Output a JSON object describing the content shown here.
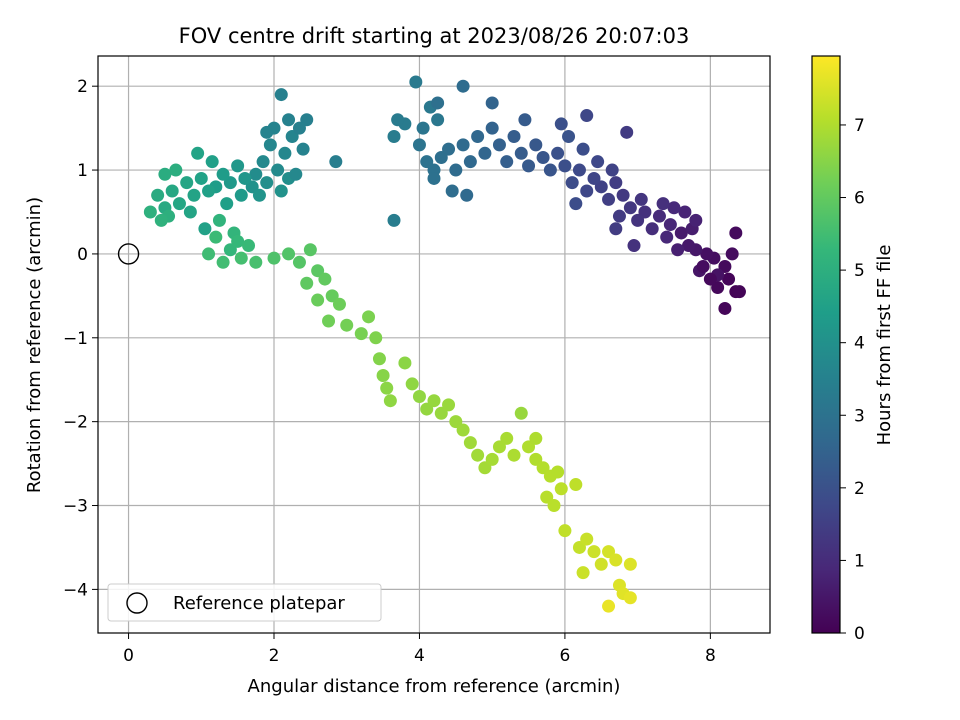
{
  "chart_data": {
    "type": "scatter",
    "title": "FOV centre drift starting at 2023/08/26 20:07:03",
    "xlabel": "Angular distance from reference (arcmin)",
    "ylabel": "Rotation from reference (arcmin)",
    "xlim": [
      -0.42,
      8.82
    ],
    "ylim": [
      -4.52,
      2.36
    ],
    "xticks": [
      0,
      2,
      4,
      6,
      8
    ],
    "yticks": [
      -4,
      -3,
      -2,
      -1,
      0,
      1,
      2
    ],
    "grid": true,
    "legend": {
      "placement": "lower-left",
      "entries": [
        "Reference platepar"
      ]
    },
    "reference_point": {
      "x": 0,
      "y": 0,
      "label": "Reference platepar"
    },
    "colorbar": {
      "label": "Hours from first FF file",
      "colormap": "viridis",
      "range": [
        0,
        7.95
      ],
      "ticks": [
        0,
        1,
        2,
        3,
        4,
        5,
        6,
        7
      ]
    },
    "colormap_stops": [
      "#440154",
      "#482878",
      "#3e4989",
      "#31688e",
      "#26828e",
      "#1f9e89",
      "#35b779",
      "#6ece58",
      "#b5de2b",
      "#fde725"
    ],
    "points": [
      [
        8.35,
        -0.45,
        0.05
      ],
      [
        8.25,
        -0.3,
        0.1
      ],
      [
        8.1,
        -0.4,
        0.15
      ],
      [
        8.2,
        -0.15,
        0.2
      ],
      [
        8.3,
        0.0,
        0.25
      ],
      [
        8.2,
        -0.65,
        0.12
      ],
      [
        8.4,
        -0.45,
        0.08
      ],
      [
        8.05,
        -0.05,
        0.3
      ],
      [
        7.95,
        0.0,
        0.35
      ],
      [
        8.1,
        -0.25,
        0.4
      ],
      [
        7.85,
        -0.2,
        0.45
      ],
      [
        7.8,
        0.05,
        0.5
      ],
      [
        8.0,
        -0.3,
        0.18
      ],
      [
        8.35,
        0.25,
        0.22
      ],
      [
        7.7,
        0.1,
        0.55
      ],
      [
        7.6,
        0.25,
        0.6
      ],
      [
        7.75,
        0.3,
        0.65
      ],
      [
        7.55,
        0.05,
        0.7
      ],
      [
        7.8,
        0.4,
        0.75
      ],
      [
        7.65,
        0.5,
        0.8
      ],
      [
        7.9,
        -0.15,
        0.28
      ],
      [
        7.45,
        0.35,
        0.85
      ],
      [
        7.4,
        0.2,
        0.9
      ],
      [
        7.5,
        0.55,
        0.95
      ],
      [
        7.3,
        0.45,
        1.0
      ],
      [
        7.2,
        0.3,
        1.05
      ],
      [
        7.35,
        0.6,
        1.1
      ],
      [
        7.1,
        0.5,
        1.15
      ],
      [
        7.0,
        0.4,
        1.2
      ],
      [
        7.05,
        0.65,
        1.25
      ],
      [
        6.9,
        0.55,
        1.3
      ],
      [
        6.8,
        0.7,
        1.35
      ],
      [
        6.95,
        0.1,
        1.15
      ],
      [
        6.75,
        0.45,
        1.4
      ],
      [
        6.7,
        0.85,
        1.45
      ],
      [
        6.6,
        0.65,
        1.5
      ],
      [
        6.5,
        0.8,
        1.55
      ],
      [
        6.65,
        1.0,
        1.6
      ],
      [
        6.4,
        0.9,
        1.65
      ],
      [
        6.3,
        0.75,
        1.7
      ],
      [
        6.45,
        1.1,
        1.75
      ],
      [
        6.2,
        1.0,
        1.8
      ],
      [
        6.1,
        0.85,
        1.85
      ],
      [
        6.25,
        1.25,
        1.9
      ],
      [
        6.0,
        1.05,
        1.95
      ],
      [
        5.9,
        1.2,
        2.0
      ],
      [
        6.05,
        1.4,
        2.05
      ],
      [
        5.8,
        1.0,
        2.1
      ],
      [
        5.7,
        1.15,
        2.15
      ],
      [
        5.6,
        1.3,
        2.2
      ],
      [
        5.5,
        1.05,
        2.25
      ],
      [
        5.4,
        1.2,
        2.3
      ],
      [
        5.3,
        1.4,
        2.35
      ],
      [
        5.2,
        1.1,
        2.4
      ],
      [
        5.1,
        1.3,
        2.45
      ],
      [
        5.0,
        1.5,
        2.5
      ],
      [
        6.3,
        1.65,
        1.72
      ],
      [
        6.85,
        1.45,
        1.38
      ],
      [
        6.15,
        0.6,
        1.88
      ],
      [
        6.7,
        0.3,
        1.42
      ],
      [
        5.95,
        1.55,
        1.98
      ],
      [
        5.45,
        1.6,
        2.28
      ],
      [
        5.0,
        1.8,
        2.55
      ],
      [
        4.9,
        1.2,
        2.6
      ],
      [
        4.8,
        1.4,
        2.65
      ],
      [
        4.7,
        1.1,
        2.7
      ],
      [
        4.6,
        1.3,
        2.75
      ],
      [
        4.5,
        1.0,
        2.8
      ],
      [
        4.4,
        1.25,
        2.85
      ],
      [
        4.3,
        1.15,
        2.9
      ],
      [
        4.2,
        1.0,
        2.95
      ],
      [
        4.1,
        1.1,
        3.0
      ],
      [
        4.0,
        1.3,
        3.05
      ],
      [
        4.05,
        1.5,
        3.1
      ],
      [
        4.25,
        1.6,
        3.15
      ],
      [
        4.15,
        1.75,
        3.2
      ],
      [
        3.95,
        2.05,
        3.25
      ],
      [
        4.6,
        2.0,
        2.78
      ],
      [
        4.25,
        1.8,
        2.92
      ],
      [
        4.65,
        0.7,
        2.72
      ],
      [
        4.45,
        0.75,
        2.82
      ],
      [
        4.2,
        0.9,
        2.94
      ],
      [
        3.8,
        1.55,
        3.28
      ],
      [
        3.65,
        1.4,
        3.32
      ],
      [
        3.7,
        1.6,
        3.3
      ],
      [
        3.65,
        0.4,
        3.35
      ],
      [
        2.85,
        1.1,
        3.4
      ],
      [
        2.1,
        1.9,
        3.45
      ],
      [
        2.2,
        1.6,
        3.5
      ],
      [
        2.0,
        1.5,
        3.55
      ],
      [
        2.25,
        1.4,
        3.6
      ],
      [
        1.95,
        1.3,
        3.65
      ],
      [
        2.15,
        1.2,
        3.7
      ],
      [
        1.85,
        1.1,
        3.75
      ],
      [
        2.05,
        1.0,
        3.8
      ],
      [
        1.75,
        0.95,
        3.85
      ],
      [
        2.2,
        0.9,
        3.9
      ],
      [
        1.9,
        0.85,
        3.95
      ],
      [
        1.7,
        0.8,
        4.0
      ],
      [
        2.1,
        0.75,
        4.05
      ],
      [
        1.8,
        0.7,
        4.1
      ],
      [
        1.6,
        0.9,
        4.15
      ],
      [
        1.5,
        1.05,
        4.2
      ],
      [
        1.4,
        0.85,
        4.25
      ],
      [
        1.55,
        0.7,
        4.3
      ],
      [
        1.3,
        0.95,
        4.35
      ],
      [
        1.2,
        0.8,
        4.4
      ],
      [
        1.35,
        0.6,
        4.45
      ],
      [
        1.1,
        0.75,
        4.5
      ],
      [
        1.0,
        0.9,
        4.55
      ],
      [
        0.9,
        0.7,
        4.6
      ],
      [
        0.8,
        0.85,
        4.65
      ],
      [
        0.7,
        0.6,
        4.7
      ],
      [
        0.6,
        0.75,
        4.75
      ],
      [
        0.5,
        0.55,
        4.8
      ],
      [
        0.4,
        0.7,
        4.85
      ],
      [
        0.5,
        0.95,
        4.9
      ],
      [
        0.65,
        1.0,
        4.95
      ],
      [
        0.55,
        0.45,
        5.0
      ],
      [
        0.3,
        0.5,
        5.05
      ],
      [
        0.45,
        0.4,
        5.1
      ],
      [
        0.95,
        1.2,
        4.58
      ],
      [
        1.15,
        1.1,
        4.48
      ],
      [
        0.85,
        0.5,
        4.62
      ],
      [
        1.05,
        0.3,
        4.52
      ],
      [
        1.25,
        0.4,
        5.15
      ],
      [
        1.45,
        0.25,
        5.2
      ],
      [
        1.4,
        0.05,
        5.25
      ],
      [
        1.5,
        0.15,
        5.3
      ],
      [
        1.65,
        0.1,
        5.35
      ],
      [
        1.2,
        0.2,
        5.4
      ],
      [
        1.1,
        0.0,
        5.45
      ],
      [
        1.3,
        -0.1,
        5.5
      ],
      [
        1.55,
        -0.05,
        5.55
      ],
      [
        1.75,
        -0.1,
        5.6
      ],
      [
        2.45,
        1.6,
        3.42
      ],
      [
        2.35,
        1.5,
        3.48
      ],
      [
        1.9,
        1.45,
        3.58
      ],
      [
        2.4,
        1.25,
        3.52
      ],
      [
        2.3,
        0.95,
        3.72
      ],
      [
        2.0,
        -0.05,
        5.7
      ],
      [
        2.2,
        0.0,
        5.75
      ],
      [
        2.35,
        -0.1,
        5.8
      ],
      [
        2.5,
        0.05,
        5.85
      ],
      [
        2.6,
        -0.2,
        5.9
      ],
      [
        2.45,
        -0.35,
        5.95
      ],
      [
        2.7,
        -0.3,
        6.0
      ],
      [
        2.8,
        -0.5,
        6.05
      ],
      [
        2.6,
        -0.55,
        6.1
      ],
      [
        2.9,
        -0.6,
        6.15
      ],
      [
        2.75,
        -0.8,
        6.2
      ],
      [
        3.0,
        -0.85,
        6.25
      ],
      [
        3.2,
        -0.95,
        6.3
      ],
      [
        3.3,
        -0.75,
        6.35
      ],
      [
        3.4,
        -1.0,
        6.4
      ],
      [
        3.45,
        -1.25,
        6.45
      ],
      [
        3.5,
        -1.45,
        6.5
      ],
      [
        3.55,
        -1.6,
        6.55
      ],
      [
        3.6,
        -1.75,
        6.6
      ],
      [
        3.8,
        -1.3,
        6.55
      ],
      [
        3.9,
        -1.55,
        6.6
      ],
      [
        4.0,
        -1.7,
        6.62
      ],
      [
        4.1,
        -1.85,
        6.65
      ],
      [
        4.2,
        -1.75,
        6.68
      ],
      [
        4.3,
        -1.9,
        6.7
      ],
      [
        4.4,
        -1.8,
        6.72
      ],
      [
        4.5,
        -2.0,
        6.75
      ],
      [
        4.6,
        -2.1,
        6.78
      ],
      [
        4.7,
        -2.25,
        6.8
      ],
      [
        4.8,
        -2.4,
        6.82
      ],
      [
        4.9,
        -2.55,
        6.85
      ],
      [
        5.0,
        -2.45,
        6.88
      ],
      [
        5.1,
        -2.3,
        6.9
      ],
      [
        5.2,
        -2.2,
        6.92
      ],
      [
        5.3,
        -2.4,
        6.95
      ],
      [
        5.4,
        -1.9,
        6.7
      ],
      [
        5.5,
        -2.3,
        7.0
      ],
      [
        5.6,
        -2.45,
        7.02
      ],
      [
        5.7,
        -2.55,
        7.05
      ],
      [
        5.8,
        -2.65,
        7.08
      ],
      [
        5.75,
        -2.9,
        7.1
      ],
      [
        5.85,
        -3.0,
        7.12
      ],
      [
        5.95,
        -2.8,
        7.15
      ],
      [
        6.0,
        -3.3,
        7.2
      ],
      [
        6.15,
        -2.75,
        7.18
      ],
      [
        6.2,
        -3.5,
        7.25
      ],
      [
        6.3,
        -3.4,
        7.3
      ],
      [
        6.4,
        -3.55,
        7.35
      ],
      [
        6.5,
        -3.7,
        7.4
      ],
      [
        6.6,
        -3.55,
        7.45
      ],
      [
        6.7,
        -3.65,
        7.5
      ],
      [
        6.75,
        -3.95,
        7.55
      ],
      [
        6.8,
        -4.05,
        7.6
      ],
      [
        6.9,
        -4.1,
        7.65
      ],
      [
        6.6,
        -4.2,
        7.7
      ],
      [
        6.9,
        -3.7,
        7.55
      ],
      [
        6.25,
        -3.8,
        7.33
      ],
      [
        5.9,
        -2.6,
        7.07
      ],
      [
        5.6,
        -2.2,
        6.98
      ]
    ]
  }
}
